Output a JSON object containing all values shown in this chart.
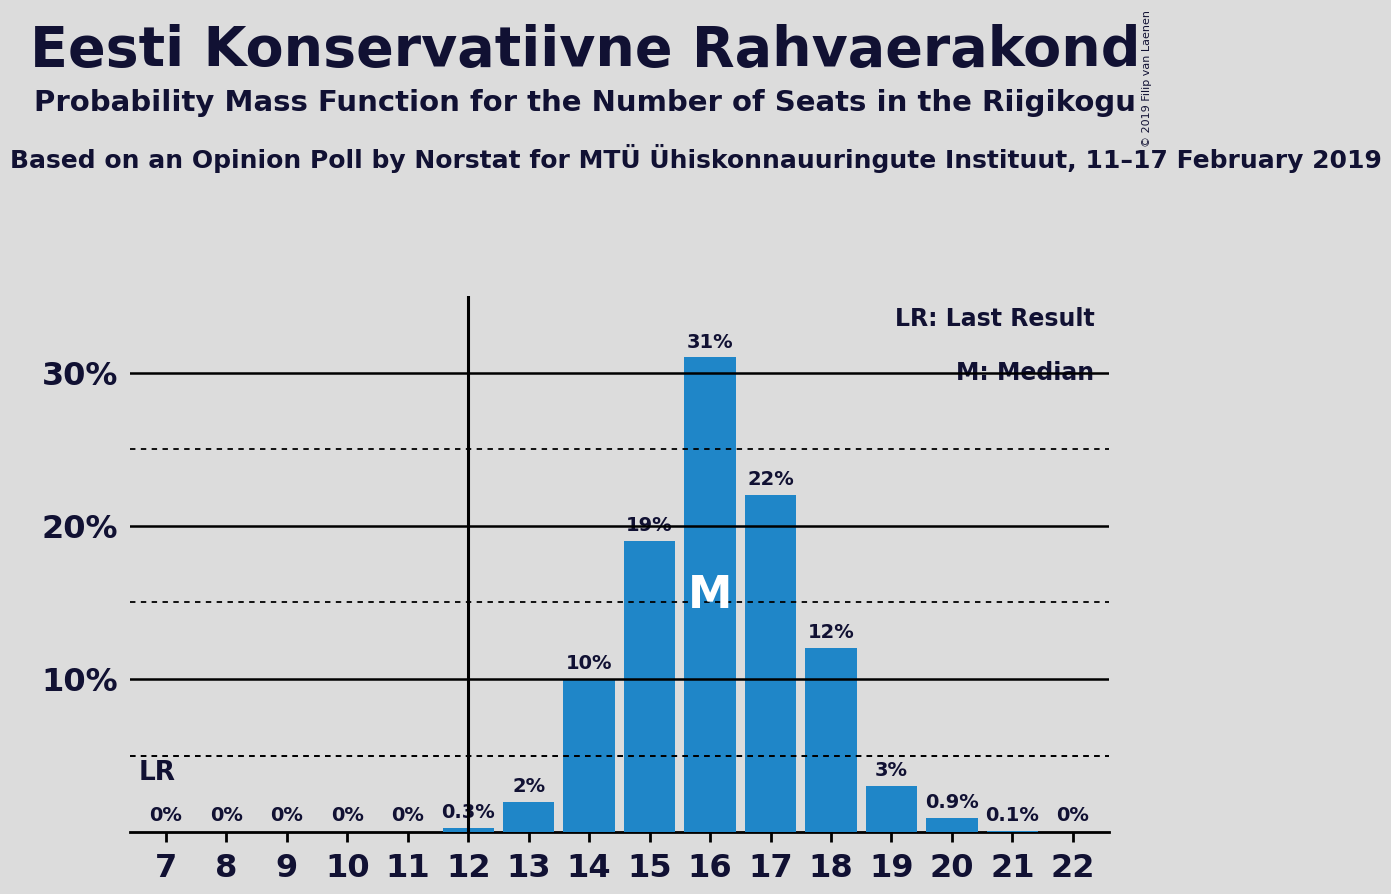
{
  "title": "Eesti Konservatiivne Rahvaerakond",
  "subtitle": "Probability Mass Function for the Number of Seats in the Riigikogu",
  "source_line": "Based on an Opinion Poll by Norstat for MTÜ Ühiskonnauuringute Instituut, 11–17 February 2019",
  "copyright": "© 2019 Filip van Laenen",
  "categories": [
    7,
    8,
    9,
    10,
    11,
    12,
    13,
    14,
    15,
    16,
    17,
    18,
    19,
    20,
    21,
    22
  ],
  "values": [
    0.0,
    0.0,
    0.0,
    0.0,
    0.0,
    0.3,
    2.0,
    10.0,
    19.0,
    31.0,
    22.0,
    12.0,
    3.0,
    0.9,
    0.1,
    0.0
  ],
  "bar_color": "#1f86c8",
  "background_color": "#dcdcdc",
  "ylim": [
    0,
    35
  ],
  "yticks": [
    10,
    20,
    30
  ],
  "ytick_labels": [
    "10%",
    "20%",
    "30%"
  ],
  "solid_hlines": [
    10.0,
    20.0,
    30.0
  ],
  "dotted_hlines": [
    5.0,
    15.0,
    25.0
  ],
  "lr_line_value": 5.0,
  "lr_seat": 12,
  "median_seat": 16,
  "median_label": "M",
  "lr_label": "LR",
  "legend_lr": "LR: Last Result",
  "legend_m": "M: Median",
  "bar_label_fontsize": 14,
  "title_fontsize": 40,
  "subtitle_fontsize": 21,
  "source_fontsize": 18,
  "axis_tick_fontsize": 23,
  "ytick_fontsize": 23,
  "legend_fontsize": 17,
  "lr_label_fontsize": 19,
  "median_fontsize": 32
}
